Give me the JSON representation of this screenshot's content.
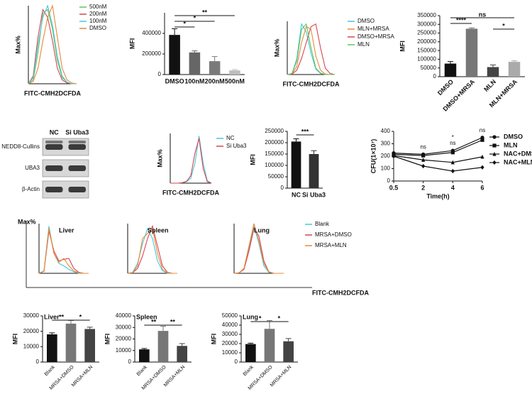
{
  "chart_data": [
    {
      "type": "flow-histogram",
      "xlabel": "FITC-CMH2DCFDA",
      "ylabel": "Max%",
      "x": [
        0,
        0.5,
        1,
        1.5,
        2,
        2.5,
        3,
        3.5,
        4,
        4.5,
        5
      ],
      "xlim": [
        0,
        5
      ],
      "ylim": [
        0,
        100
      ],
      "series": [
        {
          "name": "500nM",
          "color": "#5ec45e",
          "values": [
            0,
            5,
            40,
            90,
            95,
            70,
            30,
            8,
            2,
            0,
            0
          ]
        },
        {
          "name": "200nM",
          "color": "#d6454f",
          "values": [
            0,
            10,
            60,
            95,
            85,
            55,
            20,
            5,
            1,
            0,
            0
          ]
        },
        {
          "name": "100nM",
          "color": "#45c8d8",
          "values": [
            0,
            8,
            50,
            85,
            100,
            75,
            35,
            10,
            2,
            0,
            0
          ]
        },
        {
          "name": "DMSO",
          "color": "#e8893a",
          "values": [
            0,
            3,
            20,
            55,
            85,
            100,
            60,
            20,
            5,
            1,
            0
          ]
        }
      ]
    },
    {
      "type": "bar",
      "ylabel": "MFI",
      "categories": [
        "DMSO",
        "100nM",
        "200nM",
        "500nM"
      ],
      "values": [
        385000,
        215000,
        130000,
        40000
      ],
      "errors": [
        60000,
        15000,
        45000,
        8000
      ],
      "colors": [
        "#111111",
        "#666666",
        "#7a7a7a",
        "#bdbdbd"
      ],
      "ylim": [
        0,
        600000
      ],
      "yticks": [
        0,
        200000,
        400000
      ],
      "significance": [
        {
          "label": "**",
          "pair": [
            "DMSO",
            "500nM"
          ]
        },
        {
          "label": "*",
          "pair": [
            "DMSO",
            "200nM"
          ]
        },
        {
          "label": "*",
          "pair": [
            "DMSO",
            "100nM"
          ]
        }
      ]
    },
    {
      "type": "flow-histogram",
      "xlabel": "FITC-CMH2DCFDA",
      "ylabel": "Max%",
      "x": [
        0,
        0.5,
        1,
        1.5,
        2,
        2.5,
        3,
        3.5,
        4,
        4.5,
        5
      ],
      "xlim": [
        0,
        5
      ],
      "ylim": [
        0,
        100
      ],
      "series": [
        {
          "name": "DMSO",
          "color": "#45c8d8",
          "values": [
            0,
            2,
            30,
            95,
            80,
            40,
            10,
            2,
            0,
            0,
            0
          ]
        },
        {
          "name": "MLN+MRSA",
          "color": "#e8893a",
          "values": [
            0,
            1,
            15,
            60,
            90,
            85,
            35,
            8,
            1,
            0,
            0
          ]
        },
        {
          "name": "DMSO+MRSA",
          "color": "#d6454f",
          "values": [
            0,
            1,
            8,
            30,
            60,
            90,
            95,
            50,
            12,
            2,
            0
          ]
        },
        {
          "name": "MLN",
          "color": "#5ec45e",
          "values": [
            0,
            2,
            25,
            85,
            95,
            50,
            12,
            3,
            0,
            0,
            0
          ]
        }
      ]
    },
    {
      "type": "bar",
      "ylabel": "MFI",
      "categories": [
        "DMSO",
        "DMSO+MRSA",
        "MLN",
        "MLN+MRSA"
      ],
      "values": [
        75000,
        275000,
        55000,
        85000
      ],
      "errors": [
        12000,
        5000,
        12000,
        6000
      ],
      "colors": [
        "#111111",
        "#777777",
        "#444444",
        "#aaaaaa"
      ],
      "ylim": [
        0,
        350000
      ],
      "yticks": [
        0,
        50000,
        100000,
        150000,
        200000,
        250000,
        300000,
        350000
      ],
      "significance": [
        {
          "label": "ns",
          "pair": [
            "DMSO",
            "MLN+MRSA"
          ]
        },
        {
          "label": "****",
          "pair": [
            "DMSO",
            "DMSO+MRSA"
          ]
        },
        {
          "label": "*",
          "pair": [
            "MLN",
            "MLN+MRSA"
          ]
        }
      ]
    },
    {
      "type": "blot",
      "lanes": [
        "NC",
        "Si Uba3"
      ],
      "rows": [
        "NEDD8-Cullins",
        "UBA3",
        "β-Actin"
      ]
    },
    {
      "type": "flow-histogram",
      "xlabel": "FITC-CMH2DCFDA",
      "ylabel": "Max%",
      "x": [
        0,
        0.5,
        1,
        1.5,
        2,
        2.5,
        3,
        3.5,
        4,
        4.5,
        5
      ],
      "xlim": [
        0,
        5
      ],
      "ylim": [
        0,
        100
      ],
      "series": [
        {
          "name": "NC",
          "color": "#45c8d8",
          "values": [
            0,
            0,
            0,
            1,
            3,
            10,
            40,
            95,
            40,
            5,
            0
          ]
        },
        {
          "name": "Si Uba3",
          "color": "#d6454f",
          "values": [
            0,
            0,
            0,
            1,
            4,
            15,
            60,
            90,
            30,
            3,
            0
          ]
        }
      ]
    },
    {
      "type": "bar",
      "ylabel": "MFI",
      "categories": [
        "NC",
        "Si Uba3"
      ],
      "values": [
        205000,
        150000
      ],
      "errors": [
        12000,
        15000
      ],
      "colors": [
        "#111111",
        "#333333"
      ],
      "ylim": [
        0,
        250000
      ],
      "yticks": [
        0,
        50000,
        100000,
        150000,
        200000,
        250000
      ],
      "significance": [
        {
          "label": "***",
          "pair": [
            "NC",
            "Si Uba3"
          ]
        }
      ]
    },
    {
      "type": "line",
      "xlabel": "Time(h)",
      "ylabel": "CFU(1×10⁷)",
      "categories": [
        "0.5",
        "2",
        "4",
        "6"
      ],
      "ylim": [
        0,
        400
      ],
      "yticks": [
        0,
        100,
        200,
        300,
        400
      ],
      "series": [
        {
          "name": "DMSO",
          "color": "#111111",
          "marker": "circle",
          "values": [
            225,
            215,
            245,
            350
          ]
        },
        {
          "name": "MLN",
          "color": "#111111",
          "marker": "square",
          "values": [
            215,
            205,
            230,
            330
          ]
        },
        {
          "name": "NAC+DMSO",
          "color": "#111111",
          "marker": "triangle",
          "values": [
            205,
            170,
            150,
            195
          ]
        },
        {
          "name": "NAC+MLN",
          "color": "#111111",
          "marker": "diamond",
          "values": [
            200,
            120,
            80,
            110
          ]
        }
      ],
      "annotations": [
        {
          "text": "ns",
          "category": "2"
        },
        {
          "text": "ns",
          "category": "4"
        },
        {
          "text": "*",
          "category": "4"
        },
        {
          "text": "ns",
          "category": "6"
        }
      ]
    },
    {
      "type": "flow-histogram-panels",
      "xlabel": "FITC-CMH2DCFDA",
      "ylabel": "Max%",
      "x": [
        0,
        0.5,
        1,
        1.5,
        2,
        2.5,
        3,
        3.5,
        4,
        4.5,
        5
      ],
      "xlim": [
        0,
        5
      ],
      "ylim": [
        0,
        100
      ],
      "legend": [
        {
          "name": "Blank",
          "color": "#45c8d8"
        },
        {
          "name": "MRSA+DMSO",
          "color": "#d6454f"
        },
        {
          "name": "MRSA+MLN",
          "color": "#e8893a"
        }
      ],
      "panels": [
        {
          "title": "Liver",
          "series": [
            [
              0,
              5,
              95,
              40,
              20,
              15,
              8,
              3,
              0,
              0,
              0
            ],
            [
              0,
              4,
              85,
              45,
              25,
              28,
              30,
              10,
              2,
              0,
              0
            ],
            [
              0,
              4,
              90,
              40,
              22,
              30,
              15,
              5,
              1,
              0,
              0
            ]
          ]
        },
        {
          "title": "Spleen",
          "series": [
            [
              0,
              2,
              20,
              60,
              90,
              70,
              25,
              5,
              0,
              0,
              0
            ],
            [
              0,
              1,
              10,
              35,
              70,
              95,
              55,
              15,
              2,
              0,
              0
            ],
            [
              0,
              1,
              15,
              70,
              80,
              90,
              40,
              8,
              1,
              0,
              0
            ]
          ]
        },
        {
          "title": "Lung",
          "series": [
            [
              0,
              1,
              10,
              50,
              95,
              60,
              15,
              2,
              0,
              0,
              0
            ],
            [
              0,
              1,
              8,
              45,
              90,
              75,
              25,
              3,
              0,
              0,
              0
            ],
            [
              0,
              1,
              10,
              55,
              100,
              65,
              20,
              3,
              0,
              0,
              0
            ]
          ]
        }
      ]
    },
    {
      "type": "bar",
      "title": "Liver",
      "ylabel": "MFI",
      "categories": [
        "Blank",
        "MRSA+DMSO",
        "MRSA+MLN"
      ],
      "values": [
        18000,
        25000,
        21500
      ],
      "errors": [
        1000,
        2000,
        1200
      ],
      "colors": [
        "#111111",
        "#777777",
        "#444444"
      ],
      "ylim": [
        0,
        30000
      ],
      "yticks": [
        0,
        10000,
        20000,
        30000
      ],
      "significance": [
        {
          "label": "**",
          "pair": [
            "Blank",
            "MRSA+DMSO"
          ]
        },
        {
          "label": "*",
          "pair": [
            "MRSA+DMSO",
            "MRSA+MLN"
          ]
        }
      ]
    },
    {
      "type": "bar",
      "title": "Spleen",
      "ylabel": "MFI",
      "categories": [
        "Blank",
        "MRSA+DMSO",
        "MRSA+MLN"
      ],
      "values": [
        11000,
        27000,
        14000
      ],
      "errors": [
        800,
        4000,
        2000
      ],
      "colors": [
        "#111111",
        "#777777",
        "#444444"
      ],
      "ylim": [
        0,
        40000
      ],
      "yticks": [
        0,
        10000,
        20000,
        30000,
        40000
      ],
      "significance": [
        {
          "label": "**",
          "pair": [
            "Blank",
            "MRSA+DMSO"
          ]
        },
        {
          "label": "**",
          "pair": [
            "MRSA+DMSO",
            "MRSA+MLN"
          ]
        }
      ]
    },
    {
      "type": "bar",
      "title": "Lung",
      "ylabel": "MFI",
      "categories": [
        "Blank",
        "MRSA+DMSO",
        "MRSA+MLN"
      ],
      "values": [
        19500,
        36000,
        22500
      ],
      "errors": [
        1000,
        9000,
        3000
      ],
      "colors": [
        "#111111",
        "#777777",
        "#444444"
      ],
      "ylim": [
        0,
        50000
      ],
      "yticks": [
        0,
        10000,
        20000,
        30000,
        40000,
        50000
      ],
      "significance": [
        {
          "label": "*",
          "pair": [
            "Blank",
            "MRSA+DMSO"
          ]
        },
        {
          "label": "*",
          "pair": [
            "MRSA+DMSO",
            "MRSA+MLN"
          ]
        }
      ]
    }
  ]
}
